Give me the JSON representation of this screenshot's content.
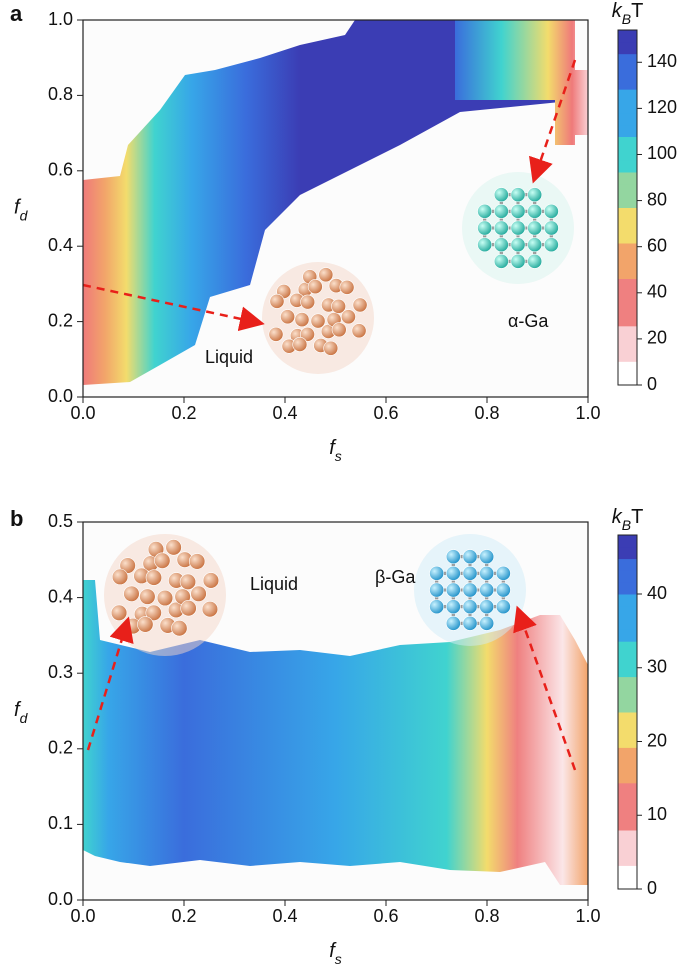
{
  "chart_data": [
    {
      "type": "contour",
      "panel_label": "a",
      "x_label": {
        "base": "f",
        "sub": "s"
      },
      "y_label": {
        "base": "f",
        "sub": "d"
      },
      "xlim": [
        0,
        1
      ],
      "ylim": [
        0,
        1
      ],
      "xticks": [
        {
          "value": 0,
          "label": "0.0"
        },
        {
          "value": 0.2,
          "label": "0.2"
        },
        {
          "value": 0.4,
          "label": "0.4"
        },
        {
          "value": 0.6,
          "label": "0.6"
        },
        {
          "value": 0.8,
          "label": "0.8"
        },
        {
          "value": 1,
          "label": "1.0"
        }
      ],
      "yticks": [
        {
          "value": 0,
          "label": "0.0"
        },
        {
          "value": 0.2,
          "label": "0.2"
        },
        {
          "value": 0.4,
          "label": "0.4"
        },
        {
          "value": 0.6,
          "label": "0.6"
        },
        {
          "value": 0.8,
          "label": "0.8"
        },
        {
          "value": 1,
          "label": "1.0"
        }
      ],
      "colorbar": {
        "title": {
          "italic": "k",
          "sub": "B",
          "rest": "T"
        },
        "lim": [
          0,
          154
        ],
        "ticks": [
          0,
          20,
          40,
          60,
          80,
          100,
          120,
          140
        ]
      },
      "colormap": [
        "#ffffff",
        "#f9d0d4",
        "#ef8080",
        "#f2a46a",
        "#f3dc6c",
        "#93d6a0",
        "#40d3cf",
        "#37a6e8",
        "#3a6ddc",
        "#3b3db4"
      ],
      "annotations": [
        "Liquid",
        "α-Ga"
      ]
    },
    {
      "type": "contour",
      "panel_label": "b",
      "x_label": {
        "base": "f",
        "sub": "s"
      },
      "y_label": {
        "base": "f",
        "sub": "d"
      },
      "xlim": [
        0,
        1
      ],
      "ylim": [
        0,
        0.5
      ],
      "xticks": [
        {
          "value": 0,
          "label": "0.0"
        },
        {
          "value": 0.2,
          "label": "0.2"
        },
        {
          "value": 0.4,
          "label": "0.4"
        },
        {
          "value": 0.6,
          "label": "0.6"
        },
        {
          "value": 0.8,
          "label": "0.8"
        },
        {
          "value": 1,
          "label": "1.0"
        }
      ],
      "yticks": [
        {
          "value": 0,
          "label": "0.0"
        },
        0.1,
        0.2,
        0.3,
        0.4,
        0.5
      ],
      "colorbar": {
        "title": {
          "italic": "k",
          "sub": "B",
          "rest": "T"
        },
        "lim": [
          0,
          48
        ],
        "ticks": [
          0,
          10,
          20,
          30,
          40
        ]
      },
      "colormap": [
        "#ffffff",
        "#f9d0d4",
        "#ef8080",
        "#f2a46a",
        "#f3dc6c",
        "#93d6a0",
        "#40d3cf",
        "#37a6e8",
        "#3a6ddc",
        "#3b3db4"
      ],
      "annotations": [
        "Liquid",
        "β-Ga"
      ]
    }
  ]
}
